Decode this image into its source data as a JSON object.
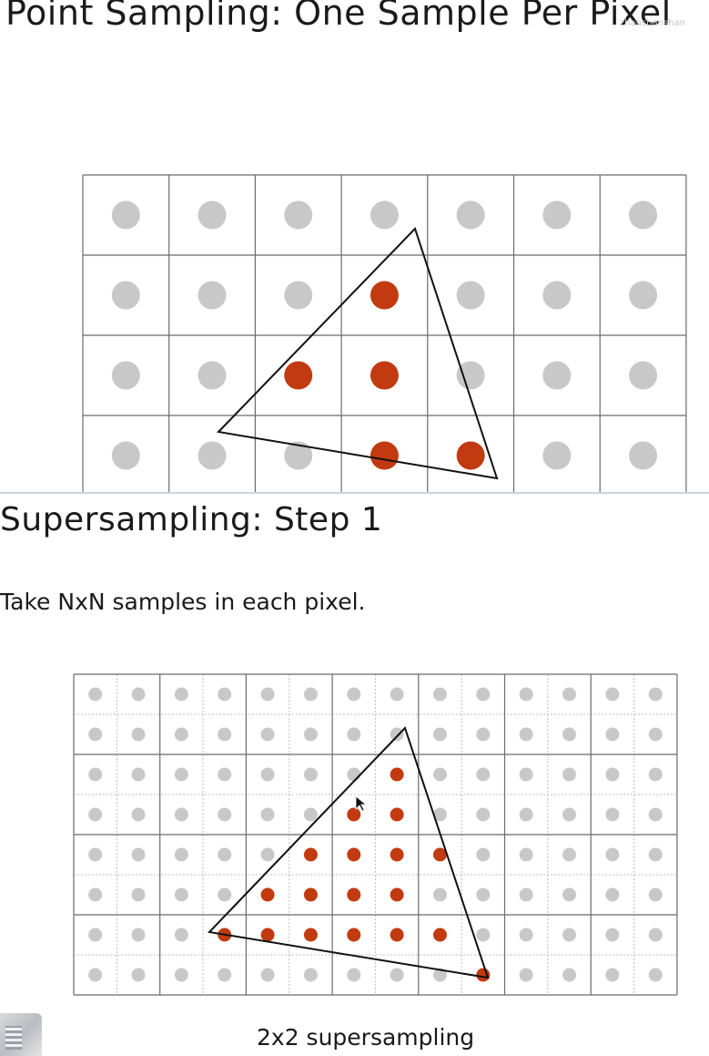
{
  "slide1": {
    "title": "Point Sampling: One Sample Per Pixel",
    "watermark": "zhanshanshan",
    "grid": {
      "cols": 7,
      "rows": 4
    },
    "covered_samples": [
      [
        3,
        1
      ],
      [
        2,
        2
      ],
      [
        3,
        2
      ],
      [
        3,
        3
      ],
      [
        4,
        3
      ]
    ],
    "triangle_label": "triangle"
  },
  "slide2": {
    "title": "Supersampling: Step 1",
    "body": "Take NxN samples in each pixel.",
    "caption": "2x2 supersampling",
    "grid": {
      "cols": 7,
      "rows": 4,
      "subsamples": 2
    },
    "covered_samples": [
      [
        7,
        2
      ],
      [
        6,
        3
      ],
      [
        7,
        3
      ],
      [
        5,
        4
      ],
      [
        6,
        4
      ],
      [
        7,
        4
      ],
      [
        8,
        4
      ],
      [
        4,
        5
      ],
      [
        5,
        5
      ],
      [
        6,
        5
      ],
      [
        7,
        5
      ],
      [
        3,
        6
      ],
      [
        4,
        6
      ],
      [
        5,
        6
      ],
      [
        6,
        6
      ],
      [
        7,
        6
      ],
      [
        8,
        6
      ],
      [
        9,
        7
      ]
    ]
  },
  "colors": {
    "covered": "#c23a10",
    "uncovered": "#c8c8c8",
    "grid": "#6b6b6b",
    "subgrid": "#bdbdbd",
    "divider": "#c9d4dc"
  }
}
